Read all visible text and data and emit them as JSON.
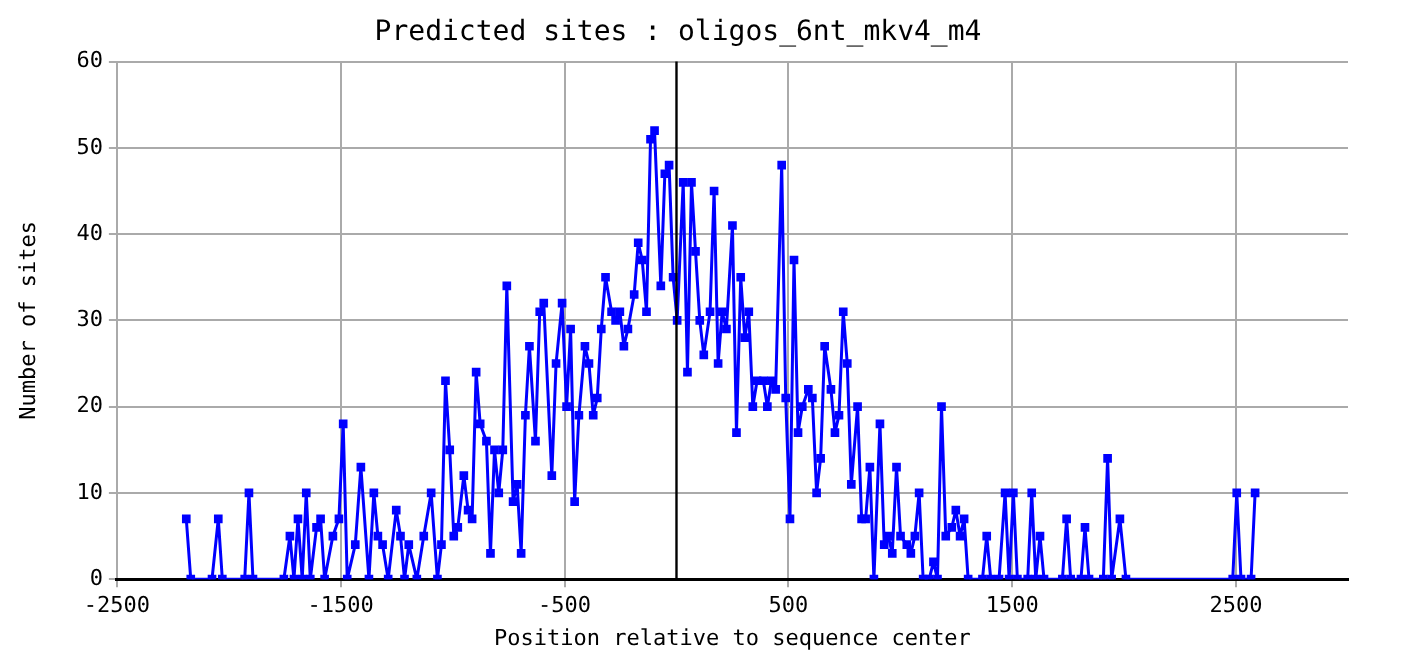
{
  "chart_data": {
    "type": "line",
    "title": "Predicted sites : oligos_6nt_mkv4_m4",
    "xlabel": "Position relative to sequence center",
    "ylabel": "Number of sites",
    "xlim": [
      -2500,
      3000
    ],
    "xticks": [
      -2500,
      -1500,
      -500,
      500,
      1500,
      2500
    ],
    "ylim": [
      0,
      60
    ],
    "yticks": [
      0,
      10,
      20,
      30,
      40,
      50,
      60
    ],
    "grid": true,
    "marker": "square",
    "line_style": "solid",
    "ref_lines": [
      {
        "axis": "x",
        "value": 0,
        "color": "#000000"
      }
    ],
    "series": [
      {
        "color": "#0000ff",
        "x": [
          -2190,
          -2170,
          -2075,
          -2047,
          -2029,
          -1929,
          -1910,
          -1892,
          -1754,
          -1727,
          -1709,
          -1691,
          -1672,
          -1654,
          -1636,
          -1608,
          -1590,
          -1572,
          -1535,
          -1508,
          -1489,
          -1471,
          -1435,
          -1410,
          -1374,
          -1352,
          -1334,
          -1313,
          -1288,
          -1252,
          -1233,
          -1215,
          -1196,
          -1160,
          -1129,
          -1096,
          -1068,
          -1050,
          -1032,
          -1013,
          -995,
          -977,
          -950,
          -931,
          -913,
          -895,
          -877,
          -849,
          -831,
          -813,
          -794,
          -776,
          -758,
          -730,
          -712,
          -694,
          -675,
          -657,
          -630,
          -611,
          -593,
          -557,
          -538,
          -511,
          -491,
          -473,
          -455,
          -436,
          -409,
          -391,
          -372,
          -354,
          -336,
          -317,
          -290,
          -272,
          -253,
          -235,
          -217,
          -189,
          -171,
          -153,
          -134,
          -116,
          -98,
          -70,
          -52,
          -33,
          -15,
          3,
          30,
          49,
          67,
          85,
          104,
          122,
          150,
          168,
          186,
          204,
          223,
          250,
          268,
          287,
          305,
          323,
          341,
          360,
          388,
          406,
          424,
          443,
          470,
          488,
          507,
          525,
          543,
          562,
          589,
          607,
          626,
          644,
          662,
          690,
          708,
          726,
          745,
          763,
          781,
          809,
          827,
          845,
          864,
          882,
          909,
          928,
          946,
          964,
          983,
          1001,
          1029,
          1047,
          1065,
          1084,
          1102,
          1129,
          1148,
          1166,
          1184,
          1203,
          1230,
          1248,
          1267,
          1285,
          1303,
          1367,
          1386,
          1404,
          1441,
          1468,
          1486,
          1505,
          1523,
          1569,
          1587,
          1605,
          1624,
          1642,
          1724,
          1743,
          1761,
          1807,
          1825,
          1843,
          1907,
          1926,
          1944,
          1981,
          2008,
          2485,
          2503,
          2522,
          2567,
          2585
        ],
        "values": [
          7,
          0,
          0,
          7,
          0,
          0,
          10,
          0,
          0,
          5,
          0,
          7,
          0,
          10,
          0,
          6,
          7,
          0,
          5,
          7,
          18,
          0,
          4,
          13,
          0,
          10,
          5,
          4,
          0,
          8,
          5,
          0,
          4,
          0,
          5,
          10,
          0,
          4,
          23,
          15,
          5,
          6,
          12,
          8,
          7,
          24,
          18,
          16,
          3,
          15,
          10,
          15,
          34,
          9,
          11,
          3,
          19,
          27,
          16,
          31,
          32,
          12,
          25,
          32,
          20,
          29,
          9,
          19,
          27,
          25,
          19,
          21,
          29,
          35,
          31,
          30,
          31,
          27,
          29,
          33,
          39,
          37,
          31,
          51,
          52,
          34,
          47,
          48,
          35,
          30,
          46,
          24,
          46,
          38,
          30,
          26,
          31,
          45,
          25,
          31,
          29,
          41,
          17,
          35,
          28,
          31,
          20,
          23,
          23,
          20,
          23,
          22,
          48,
          21,
          7,
          37,
          17,
          20,
          22,
          21,
          10,
          14,
          27,
          22,
          17,
          19,
          31,
          25,
          11,
          20,
          7,
          7,
          13,
          0,
          18,
          4,
          5,
          3,
          13,
          5,
          4,
          3,
          5,
          10,
          0,
          0,
          2,
          0,
          20,
          5,
          6,
          8,
          5,
          7,
          0,
          0,
          5,
          0,
          0,
          10,
          0,
          10,
          0,
          0,
          10,
          0,
          5,
          0,
          0,
          7,
          0,
          0,
          6,
          0,
          0,
          14,
          0,
          7,
          0,
          0,
          10,
          0,
          0,
          10
        ]
      }
    ]
  }
}
